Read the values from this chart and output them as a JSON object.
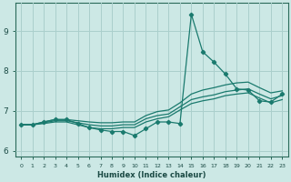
{
  "xlabel": "Humidex (Indice chaleur)",
  "bg_color": "#cce8e5",
  "grid_color": "#aacfcc",
  "line_color": "#1a7a6e",
  "xlim": [
    -0.5,
    23.5
  ],
  "ylim": [
    5.85,
    9.7
  ],
  "xticks": [
    0,
    1,
    2,
    3,
    4,
    5,
    6,
    7,
    8,
    9,
    10,
    11,
    12,
    13,
    14,
    15,
    16,
    17,
    18,
    19,
    20,
    21,
    22,
    23
  ],
  "yticks": [
    6,
    7,
    8,
    9
  ],
  "line_main": [
    6.65,
    6.65,
    6.72,
    6.78,
    6.78,
    6.68,
    6.58,
    6.52,
    6.48,
    6.48,
    6.38,
    6.55,
    6.72,
    6.72,
    6.68,
    9.42,
    8.48,
    8.22,
    7.92,
    7.55,
    7.52,
    7.25,
    7.22,
    7.42
  ],
  "line_upper": [
    6.65,
    6.65,
    6.72,
    6.78,
    6.78,
    6.75,
    6.72,
    6.7,
    6.7,
    6.72,
    6.72,
    6.88,
    6.98,
    7.02,
    7.2,
    7.42,
    7.52,
    7.58,
    7.65,
    7.7,
    7.72,
    7.58,
    7.45,
    7.5
  ],
  "line_mid": [
    6.65,
    6.65,
    6.7,
    6.75,
    6.75,
    6.7,
    6.65,
    6.62,
    6.62,
    6.65,
    6.65,
    6.8,
    6.88,
    6.92,
    7.1,
    7.28,
    7.35,
    7.4,
    7.48,
    7.52,
    7.55,
    7.42,
    7.3,
    7.38
  ],
  "line_lower": [
    6.65,
    6.65,
    6.68,
    6.72,
    6.72,
    6.65,
    6.58,
    6.55,
    6.55,
    6.58,
    6.58,
    6.72,
    6.8,
    6.85,
    7.02,
    7.18,
    7.25,
    7.3,
    7.38,
    7.42,
    7.45,
    7.32,
    7.2,
    7.28
  ]
}
